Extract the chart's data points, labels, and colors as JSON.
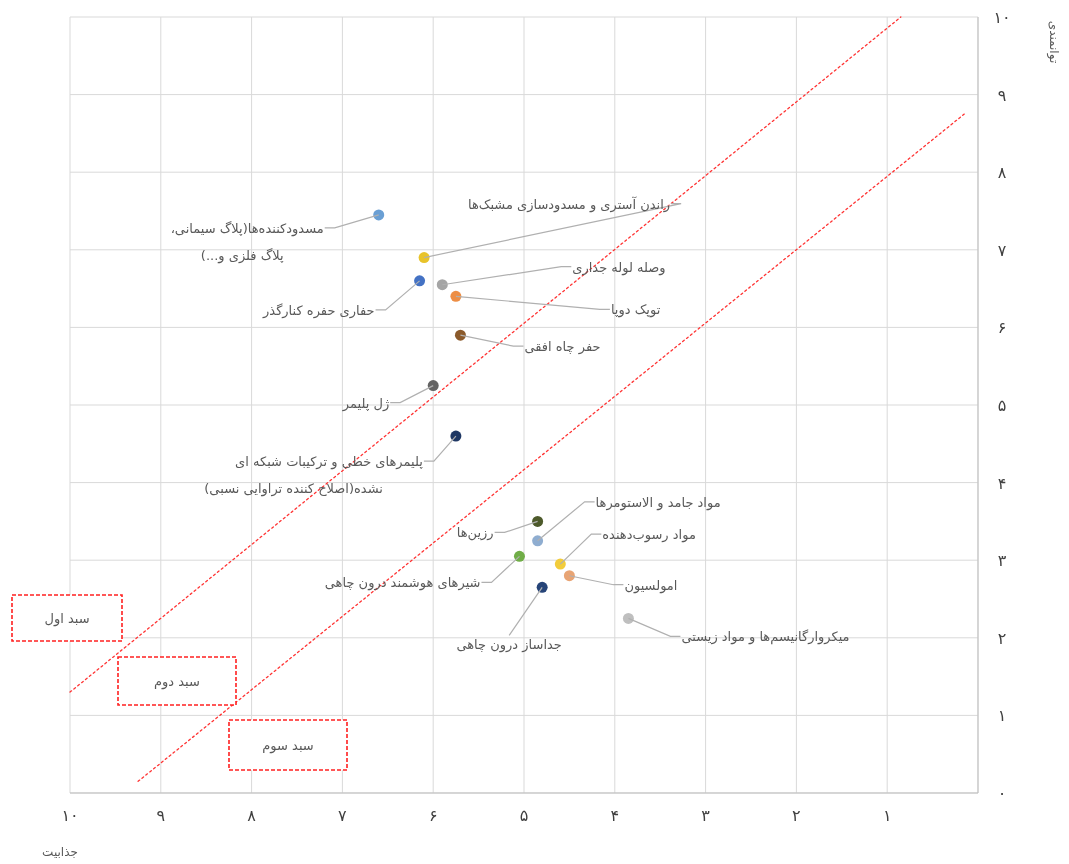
{
  "chart_data": {
    "type": "scatter",
    "xlabel": "جذابیت",
    "ylabel": "توانمندی",
    "xlim": [
      10,
      0
    ],
    "ylim": [
      0,
      10
    ],
    "xticks": [
      {
        "value": 10,
        "label": "۱۰"
      },
      {
        "value": 9,
        "label": "۹"
      },
      {
        "value": 8,
        "label": "۸"
      },
      {
        "value": 7,
        "label": "۷"
      },
      {
        "value": 6,
        "label": "۶"
      },
      {
        "value": 5,
        "label": "۵"
      },
      {
        "value": 4,
        "label": "۴"
      },
      {
        "value": 3,
        "label": "۳"
      },
      {
        "value": 2,
        "label": "۲"
      },
      {
        "value": 1,
        "label": "۱"
      },
      {
        "value": 0,
        "label": null
      }
    ],
    "yticks": [
      {
        "value": 0,
        "label": "۰"
      },
      {
        "value": 1,
        "label": "۱"
      },
      {
        "value": 2,
        "label": "۲"
      },
      {
        "value": 3,
        "label": "۳"
      },
      {
        "value": 4,
        "label": "۴"
      },
      {
        "value": 5,
        "label": "۵"
      },
      {
        "value": 6,
        "label": "۶"
      },
      {
        "value": 7,
        "label": "۷"
      },
      {
        "value": 8,
        "label": "۸"
      },
      {
        "value": 9,
        "label": "۹"
      },
      {
        "value": 10,
        "label": "۱۰"
      }
    ],
    "grid": true,
    "marker": "circle",
    "series": [
      {
        "x": [
          6.6,
          6.1,
          5.9,
          6.15,
          5.75,
          5.7,
          6.0,
          5.75,
          4.85,
          4.85,
          5.05,
          4.6,
          4.5,
          4.8,
          3.85
        ],
        "values": [
          7.45,
          6.9,
          6.55,
          6.6,
          6.4,
          5.9,
          5.25,
          4.6,
          3.5,
          3.25,
          3.05,
          2.95,
          2.8,
          2.65,
          2.25
        ],
        "colors": [
          "#6a9fd4",
          "#e8c32a",
          "#a5a5a5",
          "#4472c4",
          "#ed8e45",
          "#8b5a2b",
          "#636363",
          "#1f3864",
          "#4d5a2b",
          "#8fadd0",
          "#70ad47",
          "#f2cc3b",
          "#e8a474",
          "#264478",
          "#bfbfbf"
        ]
      },
      {
        "type": "line",
        "x": [
          10,
          0.85
        ],
        "values": [
          1.3,
          10
        ],
        "color": "#ff3333",
        "line_style": "dotted",
        "marker": "none"
      },
      {
        "type": "line",
        "x": [
          9.25,
          0.15
        ],
        "values": [
          0.15,
          8.75
        ],
        "color": "#ff3333",
        "line_style": "dotted",
        "marker": "none"
      }
    ],
    "annotations": [
      {
        "text": "مسدودکننده‌ها(پلاگ سیمانی،\nپلاگ فلزی و...)",
        "x": 6.6,
        "y": 7.45
      },
      {
        "text": "راندن آستری و مسدودسازی مشبک‌ها",
        "x": 6.1,
        "y": 6.9
      },
      {
        "text": "وصله لوله جداری",
        "x": 5.9,
        "y": 6.55
      },
      {
        "text": "حفاری حفره کنارگذر",
        "x": 6.15,
        "y": 6.6
      },
      {
        "text": "توپک دوپا",
        "x": 5.75,
        "y": 6.4
      },
      {
        "text": "حفر چاه افقی",
        "x": 5.7,
        "y": 5.9
      },
      {
        "text": "ژل پلیمر",
        "x": 6.0,
        "y": 5.25
      },
      {
        "text": "پلیمرهای خطی و ترکیبات شبکه ای\nنشده(اصلاح کننده تراوایی نسبی)",
        "x": 5.75,
        "y": 4.6
      },
      {
        "text": "رزین‌ها",
        "x": 4.85,
        "y": 3.5
      },
      {
        "text": "مواد جامد و الاستومرها",
        "x": 4.85,
        "y": 3.25
      },
      {
        "text": "شیرهای هوشمند درون چاهی",
        "x": 5.05,
        "y": 3.05
      },
      {
        "text": "مواد رسوب‌دهنده",
        "x": 4.6,
        "y": 2.95
      },
      {
        "text": "امولسیون",
        "x": 4.5,
        "y": 2.8
      },
      {
        "text": "جداساز درون چاهی",
        "x": 4.8,
        "y": 2.65
      },
      {
        "text": "میکروارگانیسم‌ها و مواد زیستی",
        "x": 3.85,
        "y": 2.25
      },
      "سبد اول",
      "سبد دوم",
      "سبد سوم"
    ]
  }
}
